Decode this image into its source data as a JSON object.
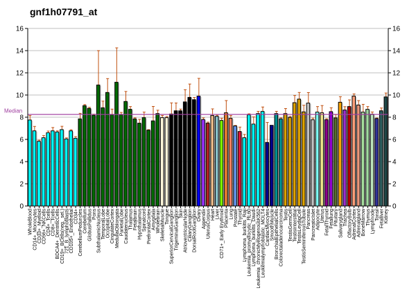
{
  "chart_data": {
    "type": "bar",
    "title": "gnf1h07791_at",
    "xlabel": "",
    "ylabel": "",
    "ylim": [
      0,
      16
    ],
    "yticks": [
      0,
      2,
      4,
      6,
      8,
      10,
      12,
      14,
      16
    ],
    "grid": true,
    "median": {
      "label": "Median",
      "value": 8.25,
      "color": "#A040A0"
    },
    "categories": [
      "WholeBlood",
      "CD14+_Monocytes",
      "CD33+_Myeloid",
      "CD56+_NKCells",
      "CD4+_Tcells",
      "CD8+_Tcells",
      "BDCA4+_DentriticCells",
      "CD19+_BCells(neg._sel.)",
      "721_B_lymphoblasts",
      "CD105+_Endothelial",
      "CD34+",
      "CerebellumPeduncles",
      "Cerebellum",
      "GlobusPallidus",
      "Pons",
      "SubthalamicNucleus",
      "TemporalLobe",
      "OccipitalLobe",
      "CingulateCortex",
      "MedullaOblongata",
      "ParietalLobe",
      "Caudatenucleus",
      "Thalamus",
      "Fetalbrain",
      "Hypothalamus",
      "Spinalcord",
      "PrefrontalCortex",
      "Amygdala",
      "Wholebrain",
      "SkeletalMuscle",
      "Tongue",
      "SuperiorCervicalGanglion",
      "TrigeminalGanglion",
      "Skin",
      "AtrioventricularNode",
      "CiliaryGanglion",
      "DorsalRootGanglion",
      "Ovary",
      "Appendix",
      "UterusCorpus",
      "Heart",
      "Liver",
      "CD71+_Early Erythroid",
      "Placenta",
      "Lung",
      "Prostate",
      "Thyroid",
      "Lymphoma_burkitts_Raji",
      "Leukemia_promyelocytic_HL60",
      "Lymphoma_burkitts_Daudi",
      "Leukemia_chronicMyelogenousK562",
      "Leukemialymphoblastic_MOLT4",
      "CardiacMyocytes",
      "SmoothMuscle",
      "BronchialEpithelialCells",
      "Colorectaladenocarcinoma",
      "Testis",
      "TestisGermCell",
      "TestisInterstitial",
      "TestisLeydigCell",
      "TestisSeminiferousTubule",
      "Pancreas",
      "PancreaticIslet",
      "Adipocyte",
      "Uterus",
      "FetalThyroid",
      "Fetallung",
      "Pituitary",
      "Salivarygland",
      "Trachea",
      "OlfactoryBulb",
      "AdrenalCortex",
      "Adrenalgland",
      "BoneMarrow",
      "Thymus",
      "Lymphnode",
      "Tonsil",
      "Fetalliver",
      "Kidney"
    ],
    "values": [
      7.75,
      6.77,
      5.83,
      6.15,
      6.6,
      6.77,
      6.67,
      6.88,
      6.04,
      6.77,
      6.1,
      7.85,
      9.04,
      8.79,
      8.17,
      10.9,
      8.85,
      10.23,
      8.23,
      11.15,
      8.23,
      9.42,
      8.71,
      7.85,
      7.46,
      7.96,
      6.83,
      7.67,
      8.33,
      7.96,
      7.96,
      8.29,
      8.58,
      8.58,
      9.38,
      9.79,
      9.58,
      9.9,
      7.79,
      7.46,
      8.15,
      8.08,
      7.71,
      8.4,
      7.9,
      7.21,
      6.71,
      6.15,
      8.21,
      7.38,
      8.33,
      8.52,
      5.73,
      7.27,
      8.33,
      7.85,
      8.33,
      7.98,
      9.31,
      9.63,
      8.48,
      9.27,
      7.77,
      8.46,
      8.4,
      7.77,
      8.5,
      7.94,
      9.35,
      8.65,
      8.96,
      9.9,
      9.1,
      8.46,
      8.71,
      8.27,
      7.88,
      8.58,
      9.83
    ],
    "errors": [
      0.4,
      0.4,
      0.1,
      0.2,
      0.15,
      0.3,
      0.1,
      0.3,
      0.1,
      0.1,
      0.15,
      0.5,
      0.1,
      0.1,
      0.1,
      3.1,
      0.6,
      1.25,
      0.5,
      3.1,
      0.2,
      0.9,
      0.25,
      0.1,
      0.35,
      0.5,
      0.05,
      1.3,
      0.3,
      0.2,
      0.1,
      1.0,
      0.7,
      0.15,
      1.1,
      1.2,
      0.2,
      1.6,
      0.15,
      0.1,
      0.6,
      0.1,
      0.2,
      1.1,
      0.25,
      0.05,
      0.4,
      0.3,
      0.1,
      0.65,
      0.2,
      0.4,
      1.8,
      0.0,
      0.2,
      0.1,
      0.45,
      0.1,
      0.65,
      0.6,
      0.6,
      0.95,
      0.15,
      0.5,
      0.65,
      0.1,
      0.35,
      0.3,
      0.5,
      0.3,
      0.6,
      0.2,
      0.4,
      0.7,
      0.25,
      0.2,
      0.05,
      0.25,
      0.35
    ],
    "colors": [
      "#00FFFF",
      "#00FFFF",
      "#00FFFF",
      "#00FFFF",
      "#00FFFF",
      "#00FFFF",
      "#00FFFF",
      "#00FFFF",
      "#00FFFF",
      "#00FFFF",
      "#00FFFF",
      "#006A00",
      "#006A00",
      "#006A00",
      "#006A00",
      "#006A00",
      "#006A00",
      "#006A00",
      "#006A00",
      "#006A00",
      "#006A00",
      "#006A00",
      "#006A00",
      "#006A00",
      "#006A00",
      "#006A00",
      "#006A00",
      "#006A00",
      "#006A00",
      "#FFF8DC",
      "#FFF8DC",
      "#000000",
      "#000000",
      "#000000",
      "#000000",
      "#000000",
      "#000000",
      "#0000FF",
      "#9B30FF",
      "#B22222",
      "#E8B888",
      "#88C0C8",
      "#7CFC00",
      "#F08030",
      "#FA8060",
      "#6495ED",
      "#DC143C",
      "#00FFFF",
      "#00FFFF",
      "#00FFFF",
      "#00FFFF",
      "#00FFFF",
      "#00008B",
      "#00008B",
      "#009090",
      "#009090",
      "#DAA000",
      "#DAA000",
      "#DAA000",
      "#DAA000",
      "#DAA000",
      "#C0C0C0",
      "#C0C0C0",
      "#7FFFF4",
      "#F0E68C",
      "#8B008B",
      "#9400D3",
      "#556B2F",
      "#FFA500",
      "#9932CC",
      "#B00000",
      "#FFA07A",
      "#E9967A",
      "#A8E0A0",
      "#A0D8A0",
      "#C0E8C0",
      "#333399",
      "#2F5F5F",
      "#204848"
    ],
    "error_color": "#C05010"
  }
}
